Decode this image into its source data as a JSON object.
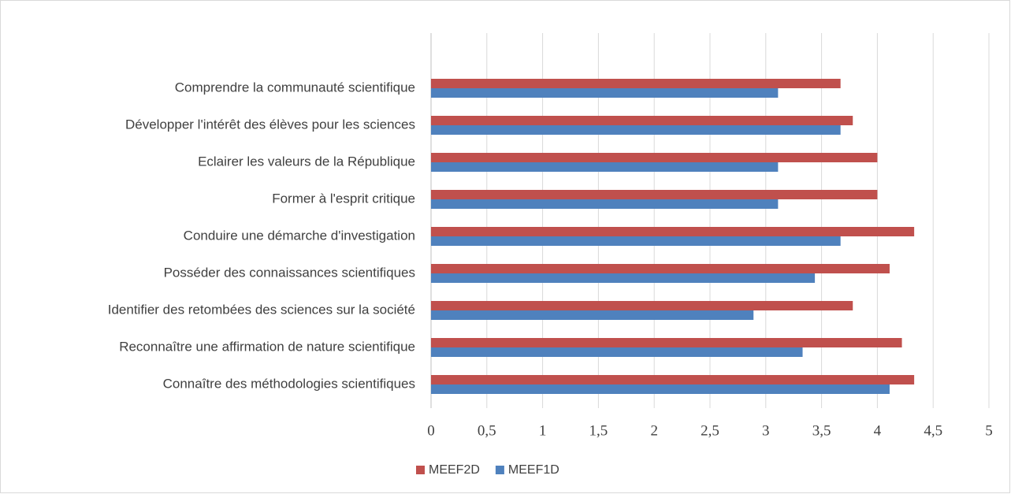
{
  "chart_data": {
    "type": "hbar",
    "categories": [
      "Comprendre la communauté scientifique",
      "Développer l'intérêt des élèves pour les sciences",
      "Eclairer les valeurs de la République",
      "Former à l'esprit critique",
      "Conduire une démarche d'investigation",
      "Posséder des connaissances scientifiques",
      "Identifier des retombées des sciences sur la société",
      "Reconnaître une affirmation de nature scientifique",
      "Connaître des méthodologies scientifiques"
    ],
    "series": [
      {
        "name": "MEEF2D",
        "color": "#c0504d",
        "values": [
          3.67,
          3.78,
          4.0,
          4.0,
          4.33,
          4.11,
          3.78,
          4.22,
          4.33
        ]
      },
      {
        "name": "MEEF1D",
        "color": "#4f81bd",
        "values": [
          3.11,
          3.67,
          3.11,
          3.11,
          3.67,
          3.44,
          2.89,
          3.33,
          4.11
        ]
      }
    ],
    "xlim": [
      0,
      5
    ],
    "xticks": [
      0,
      {
        "value": 0.5,
        "label": "0,5"
      },
      1,
      {
        "value": 1.5,
        "label": "1,5"
      },
      2,
      {
        "value": 2.5,
        "label": "2,5"
      },
      3,
      {
        "value": 3.5,
        "label": "3,5"
      },
      4,
      {
        "value": 4.5,
        "label": "4,5"
      },
      5
    ],
    "grid": true,
    "legend": "bottom"
  }
}
